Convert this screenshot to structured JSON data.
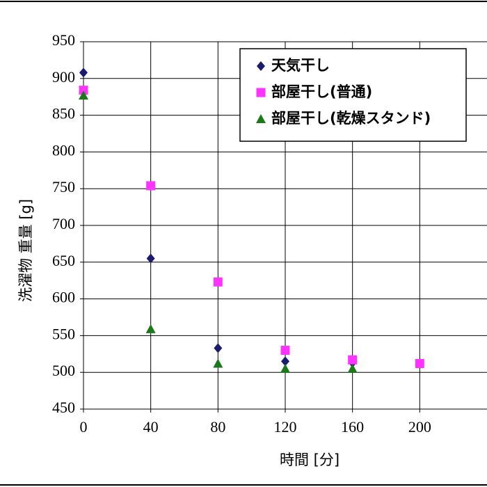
{
  "chart_data": {
    "type": "scatter",
    "x_label": "時間 [分]",
    "y_label": "洗濯物  重量 [g]",
    "x": [
      0,
      40,
      80,
      120,
      160,
      200
    ],
    "xlim": [
      0,
      240
    ],
    "xticks": [
      0,
      40,
      80,
      120,
      160,
      200
    ],
    "ylim": [
      450,
      950
    ],
    "yticks": [
      450,
      500,
      550,
      600,
      650,
      700,
      750,
      800,
      850,
      900,
      950
    ],
    "grid": true,
    "legend": "upper right",
    "series": [
      {
        "name": "天気干し",
        "color": "#1a1a6e",
        "marker": "diamond",
        "values": [
          908,
          655,
          533,
          515,
          513,
          null
        ]
      },
      {
        "name": "部屋干し(普通)",
        "color": "#ff33ff",
        "marker": "square",
        "values": [
          884,
          754,
          623,
          530,
          517,
          512
        ]
      },
      {
        "name": "部屋干し(乾燥スタンド)",
        "color": "#1a7a1a",
        "marker": "triangle",
        "values": [
          877,
          559,
          512,
          505,
          505,
          null
        ]
      }
    ]
  }
}
